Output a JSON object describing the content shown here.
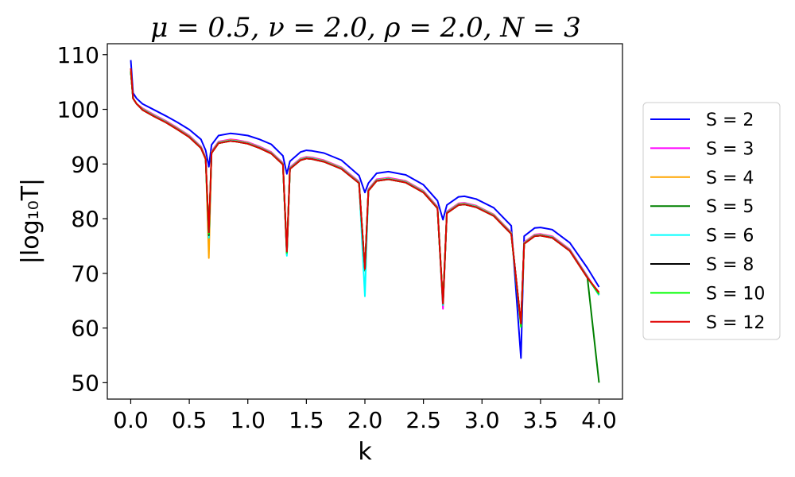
{
  "chart_data": {
    "type": "line",
    "title": "μ = 0.5, ν = 2.0, ρ = 2.0, N = 3",
    "xlabel": "k",
    "ylabel": "|log₁₀T|",
    "xlim": [
      -0.2,
      4.2
    ],
    "ylim": [
      47,
      112
    ],
    "xticks": [
      0.0,
      0.5,
      1.0,
      1.5,
      2.0,
      2.5,
      3.0,
      3.5,
      4.0
    ],
    "xtick_labels": [
      "0.0",
      "0.5",
      "1.0",
      "1.5",
      "2.0",
      "2.5",
      "3.0",
      "3.5",
      "4.0"
    ],
    "yticks": [
      50,
      60,
      70,
      80,
      90,
      100,
      110
    ],
    "ytick_labels": [
      "50",
      "60",
      "70",
      "80",
      "90",
      "100",
      "110"
    ],
    "grid": false,
    "legend_position": "right",
    "series": [
      {
        "name": "S = 2",
        "color": "#0000ff",
        "x": [
          0.0,
          0.02,
          0.05,
          0.1,
          0.2,
          0.3,
          0.4,
          0.5,
          0.6,
          0.64,
          0.667,
          0.69,
          0.75,
          0.85,
          0.9,
          1.0,
          1.1,
          1.2,
          1.3,
          1.333,
          1.36,
          1.45,
          1.5,
          1.55,
          1.65,
          1.8,
          1.95,
          2.0,
          2.03,
          2.1,
          2.2,
          2.35,
          2.5,
          2.62,
          2.667,
          2.7,
          2.8,
          2.85,
          2.95,
          3.1,
          3.25,
          3.333,
          3.36,
          3.45,
          3.5,
          3.6,
          3.75,
          3.9,
          4.0
        ],
        "y": [
          109,
          103,
          102,
          101,
          99.9,
          98.8,
          97.6,
          96.3,
          94.5,
          92.5,
          89.5,
          93.5,
          95.2,
          95.6,
          95.5,
          95.2,
          94.5,
          93.6,
          91.5,
          88.2,
          90.5,
          92.2,
          92.5,
          92.4,
          92.0,
          90.7,
          87.9,
          84.8,
          86.5,
          88.3,
          88.6,
          88.0,
          86.2,
          83.3,
          79.8,
          82.5,
          84.0,
          84.1,
          83.6,
          82.0,
          78.7,
          54.5,
          76.8,
          78.3,
          78.4,
          78.0,
          75.6,
          71.0,
          67.5
        ]
      },
      {
        "name": "S = 3",
        "color": "#ff00ff",
        "x": [
          0.0,
          0.02,
          0.05,
          0.1,
          0.2,
          0.3,
          0.4,
          0.5,
          0.6,
          0.64,
          0.667,
          0.69,
          0.75,
          0.85,
          0.9,
          1.0,
          1.1,
          1.2,
          1.3,
          1.333,
          1.36,
          1.45,
          1.5,
          1.55,
          1.65,
          1.8,
          1.95,
          2.0,
          2.03,
          2.1,
          2.2,
          2.35,
          2.5,
          2.62,
          2.667,
          2.7,
          2.8,
          2.85,
          2.95,
          3.1,
          3.25,
          3.333,
          3.36,
          3.45,
          3.5,
          3.6,
          3.75,
          3.9,
          4.0
        ],
        "y": [
          107,
          102,
          101,
          100.2,
          99.0,
          97.9,
          96.6,
          95.2,
          93.2,
          91.2,
          76.0,
          92.3,
          94.1,
          94.5,
          94.4,
          94.0,
          93.2,
          92.2,
          90.2,
          73.5,
          89.4,
          91.0,
          91.3,
          91.2,
          90.7,
          89.4,
          86.8,
          70.5,
          85.4,
          87.2,
          87.5,
          86.9,
          85.1,
          82.2,
          63.5,
          81.3,
          82.8,
          82.9,
          82.4,
          80.8,
          77.5,
          60.5,
          75.7,
          77.1,
          77.2,
          76.8,
          74.4,
          69.5,
          66.0
        ]
      },
      {
        "name": "S = 4",
        "color": "#ffa500",
        "x": [
          0.0,
          0.02,
          0.05,
          0.1,
          0.2,
          0.3,
          0.4,
          0.5,
          0.6,
          0.64,
          0.667,
          0.69,
          0.75,
          0.85,
          0.9,
          1.0,
          1.1,
          1.2,
          1.3,
          1.333,
          1.36,
          1.45,
          1.5,
          1.55,
          1.65,
          1.8,
          1.95,
          2.0,
          2.03,
          2.1,
          2.2,
          2.35,
          2.5,
          2.62,
          2.667,
          2.7,
          2.8,
          2.85,
          2.95,
          3.1,
          3.25,
          3.333,
          3.36,
          3.45,
          3.5,
          3.6,
          3.75,
          3.9,
          4.0
        ],
        "y": [
          107,
          102,
          101,
          100.1,
          98.9,
          97.8,
          96.5,
          95.1,
          93.1,
          91.1,
          72.8,
          92.2,
          94.0,
          94.4,
          94.3,
          93.9,
          93.1,
          92.1,
          90.1,
          73.5,
          89.3,
          90.9,
          91.2,
          91.1,
          90.6,
          89.3,
          86.7,
          70.5,
          85.3,
          87.1,
          87.4,
          86.8,
          85.0,
          82.1,
          64.2,
          81.2,
          82.7,
          82.8,
          82.3,
          80.7,
          77.4,
          60.5,
          75.6,
          77.0,
          77.1,
          76.7,
          74.3,
          69.4,
          66.0
        ]
      },
      {
        "name": "S = 5",
        "color": "#008000",
        "x": [
          0.0,
          0.02,
          0.05,
          0.1,
          0.2,
          0.3,
          0.4,
          0.5,
          0.6,
          0.64,
          0.667,
          0.69,
          0.75,
          0.85,
          0.9,
          1.0,
          1.1,
          1.2,
          1.3,
          1.333,
          1.36,
          1.45,
          1.5,
          1.55,
          1.65,
          1.8,
          1.95,
          2.0,
          2.03,
          2.1,
          2.2,
          2.35,
          2.5,
          2.62,
          2.667,
          2.7,
          2.8,
          2.85,
          2.95,
          3.1,
          3.25,
          3.333,
          3.36,
          3.45,
          3.5,
          3.6,
          3.75,
          3.9,
          4.0
        ],
        "y": [
          107,
          102,
          101,
          100.0,
          98.8,
          97.7,
          96.4,
          95.0,
          93.0,
          91.0,
          76.5,
          92.1,
          93.9,
          94.3,
          94.2,
          93.8,
          93.0,
          92.0,
          90.0,
          73.5,
          89.2,
          90.8,
          91.1,
          91.0,
          90.5,
          89.2,
          86.6,
          70.5,
          85.2,
          87.0,
          87.3,
          86.7,
          84.9,
          82.0,
          64.2,
          81.1,
          82.6,
          82.7,
          82.2,
          80.6,
          77.3,
          60.5,
          75.5,
          76.9,
          77.0,
          76.6,
          74.2,
          69.3,
          50.0
        ]
      },
      {
        "name": "S = 6",
        "color": "#00ffff",
        "x": [
          0.0,
          0.02,
          0.05,
          0.1,
          0.2,
          0.3,
          0.4,
          0.5,
          0.6,
          0.64,
          0.667,
          0.69,
          0.75,
          0.85,
          0.9,
          1.0,
          1.1,
          1.2,
          1.3,
          1.333,
          1.36,
          1.45,
          1.5,
          1.55,
          1.65,
          1.8,
          1.95,
          2.0,
          2.03,
          2.1,
          2.2,
          2.35,
          2.5,
          2.62,
          2.667,
          2.7,
          2.8,
          2.85,
          2.95,
          3.1,
          3.25,
          3.333,
          3.36,
          3.45,
          3.5,
          3.6,
          3.75,
          3.9,
          4.0
        ],
        "y": [
          107,
          102,
          101,
          100.0,
          98.8,
          97.7,
          96.4,
          95.0,
          93.0,
          91.0,
          76.5,
          92.1,
          93.9,
          94.3,
          94.2,
          93.8,
          93.0,
          92.0,
          90.0,
          73.2,
          89.2,
          90.8,
          91.1,
          91.0,
          90.5,
          89.2,
          86.6,
          65.8,
          85.2,
          87.0,
          87.3,
          86.7,
          84.9,
          82.0,
          64.2,
          81.1,
          82.6,
          82.7,
          82.2,
          80.6,
          77.3,
          60.5,
          75.5,
          76.9,
          77.0,
          76.6,
          74.2,
          69.3,
          66.0
        ]
      },
      {
        "name": "S = 8",
        "color": "#000000",
        "x": [
          0.0,
          0.02,
          0.05,
          0.1,
          0.2,
          0.3,
          0.4,
          0.5,
          0.6,
          0.64,
          0.667,
          0.69,
          0.75,
          0.85,
          0.9,
          1.0,
          1.1,
          1.2,
          1.3,
          1.333,
          1.36,
          1.45,
          1.5,
          1.55,
          1.65,
          1.8,
          1.95,
          2.0,
          2.03,
          2.1,
          2.2,
          2.35,
          2.5,
          2.62,
          2.667,
          2.7,
          2.8,
          2.85,
          2.95,
          3.1,
          3.25,
          3.333,
          3.36,
          3.45,
          3.5,
          3.6,
          3.75,
          3.9,
          4.0
        ],
        "y": [
          107,
          102,
          101,
          99.9,
          98.7,
          97.6,
          96.3,
          94.9,
          92.9,
          90.9,
          77.0,
          92.0,
          93.8,
          94.2,
          94.1,
          93.7,
          92.9,
          91.9,
          89.9,
          73.8,
          89.1,
          90.7,
          91.0,
          90.9,
          90.4,
          89.1,
          86.5,
          70.8,
          85.1,
          86.9,
          87.2,
          86.6,
          84.8,
          81.9,
          64.5,
          81.0,
          82.5,
          82.6,
          82.1,
          80.5,
          77.2,
          60.8,
          75.4,
          76.8,
          76.9,
          76.5,
          74.1,
          69.2,
          66.2
        ]
      },
      {
        "name": "S = 10",
        "color": "#00ff00",
        "x": [
          0.0,
          0.02,
          0.05,
          0.1,
          0.2,
          0.3,
          0.4,
          0.5,
          0.6,
          0.64,
          0.667,
          0.69,
          0.75,
          0.85,
          0.9,
          1.0,
          1.1,
          1.2,
          1.3,
          1.333,
          1.36,
          1.45,
          1.5,
          1.55,
          1.65,
          1.8,
          1.95,
          2.0,
          2.03,
          2.1,
          2.2,
          2.35,
          2.5,
          2.62,
          2.667,
          2.7,
          2.8,
          2.85,
          2.95,
          3.1,
          3.25,
          3.333,
          3.36,
          3.45,
          3.5,
          3.6,
          3.75,
          3.9,
          4.0
        ],
        "y": [
          107,
          102,
          101,
          99.9,
          98.7,
          97.6,
          96.3,
          94.9,
          92.9,
          90.9,
          77.2,
          92.0,
          93.8,
          94.2,
          94.1,
          93.7,
          92.9,
          91.9,
          89.9,
          73.8,
          89.1,
          90.7,
          91.0,
          90.9,
          90.4,
          89.1,
          86.5,
          70.8,
          85.1,
          86.9,
          87.2,
          86.6,
          84.8,
          81.9,
          64.5,
          81.0,
          82.5,
          82.6,
          82.1,
          80.5,
          77.2,
          60.2,
          75.4,
          76.8,
          76.9,
          76.5,
          74.1,
          69.2,
          66.2
        ]
      },
      {
        "name": "S = 12",
        "color": "#e00000",
        "x": [
          0.0,
          0.02,
          0.05,
          0.1,
          0.2,
          0.3,
          0.4,
          0.5,
          0.6,
          0.64,
          0.667,
          0.69,
          0.75,
          0.85,
          0.9,
          1.0,
          1.1,
          1.2,
          1.3,
          1.333,
          1.36,
          1.45,
          1.5,
          1.55,
          1.65,
          1.8,
          1.95,
          2.0,
          2.03,
          2.1,
          2.2,
          2.35,
          2.5,
          2.62,
          2.667,
          2.7,
          2.8,
          2.85,
          2.95,
          3.1,
          3.25,
          3.333,
          3.36,
          3.45,
          3.5,
          3.6,
          3.75,
          3.9,
          4.0
        ],
        "y": [
          107.5,
          102,
          101,
          99.9,
          98.7,
          97.6,
          96.3,
          94.9,
          92.9,
          90.9,
          77.5,
          92.0,
          93.8,
          94.2,
          94.1,
          93.7,
          92.9,
          91.9,
          89.9,
          74.0,
          89.1,
          90.7,
          91.0,
          90.9,
          90.4,
          89.1,
          86.5,
          70.8,
          85.1,
          86.9,
          87.2,
          86.6,
          84.8,
          81.9,
          64.5,
          81.0,
          82.5,
          82.6,
          82.1,
          80.5,
          77.2,
          60.8,
          75.4,
          76.8,
          76.9,
          76.5,
          74.1,
          69.2,
          66.5
        ]
      }
    ]
  }
}
